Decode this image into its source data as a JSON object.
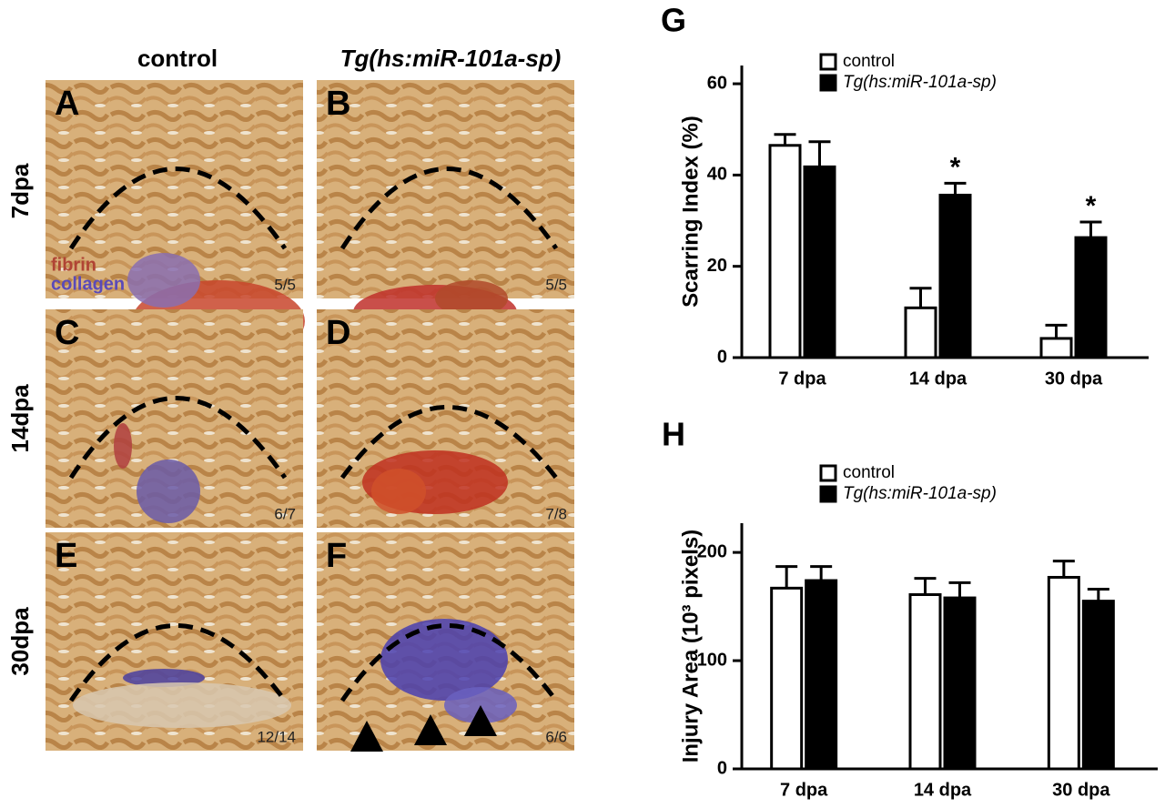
{
  "figure": {
    "column_headers": [
      "control",
      "Tg(hs:miR-101a-sp)"
    ],
    "row_labels": [
      "7dpa",
      "14dpa",
      "30dpa"
    ],
    "panels": [
      {
        "label": "A",
        "count": "5/5"
      },
      {
        "label": "B",
        "count": "5/5"
      },
      {
        "label": "C",
        "count": "6/7"
      },
      {
        "label": "D",
        "count": "7/8"
      },
      {
        "label": "E",
        "count": "12/14"
      },
      {
        "label": "F",
        "count": "6/6"
      }
    ],
    "stain_labels": [
      "fibrin",
      "collagen"
    ]
  },
  "chart_data": [
    {
      "type": "bar",
      "panel_label": "G",
      "y_label": "Scarring Index (%)",
      "categories": [
        "7 dpa",
        "14 dpa",
        "30 dpa"
      ],
      "series": [
        {
          "name": "control",
          "color": "#ffffff",
          "values": [
            46.5,
            10.9,
            4.2
          ],
          "errors": [
            2.4,
            4.3,
            2.9
          ]
        },
        {
          "name": "Tg(hs:miR-101a-sp)",
          "color": "#000000",
          "values": [
            41.8,
            35.6,
            26.3
          ],
          "errors": [
            5.5,
            2.6,
            3.4
          ],
          "significance": [
            null,
            "*",
            "*"
          ]
        }
      ],
      "ylim": [
        0,
        64
      ],
      "yticks": [
        0,
        20,
        40,
        60
      ]
    },
    {
      "type": "bar",
      "panel_label": "H",
      "y_label": "Injury Area (10³ pixels)",
      "categories": [
        "7 dpa",
        "14 dpa",
        "30 dpa"
      ],
      "series": [
        {
          "name": "control",
          "color": "#ffffff",
          "values": [
            167,
            161,
            177
          ],
          "errors": [
            20,
            15,
            15
          ]
        },
        {
          "name": "Tg(hs:miR-101a-sp)",
          "color": "#000000",
          "values": [
            174,
            158,
            155
          ],
          "errors": [
            13,
            14,
            11
          ]
        }
      ],
      "ylim": [
        0,
        227
      ],
      "yticks": [
        0,
        100,
        200
      ]
    }
  ]
}
